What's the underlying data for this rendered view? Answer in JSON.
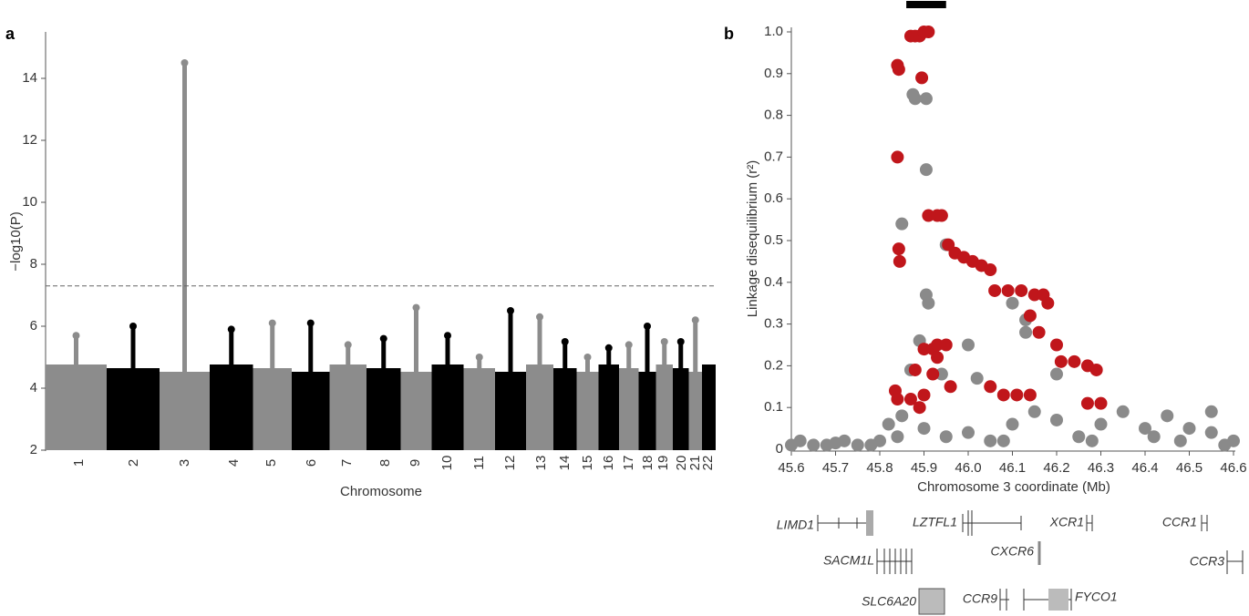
{
  "chart_data": [
    {
      "type": "manhattan",
      "panel": "a",
      "ylabel": "−log10(P)",
      "xlabel": "Chromosome",
      "categories": [
        "1",
        "2",
        "3",
        "4",
        "5",
        "6",
        "7",
        "8",
        "9",
        "10",
        "11",
        "12",
        "13",
        "14",
        "15",
        "16",
        "17",
        "18",
        "19",
        "20",
        "21",
        "22"
      ],
      "values": [
        5.7,
        6.0,
        14.5,
        5.9,
        6.1,
        6.1,
        5.4,
        5.6,
        6.6,
        5.7,
        5.0,
        6.5,
        6.3,
        5.5,
        5.0,
        5.3,
        5.4,
        6.0,
        5.5,
        5.5,
        6.2,
        4.6
      ],
      "colors": [
        "#8c8c8c",
        "#000000"
      ],
      "threshold": 7.3,
      "ylim": [
        2,
        15.5
      ],
      "yticks": [
        2,
        4,
        6,
        8,
        10,
        12,
        14
      ]
    },
    {
      "type": "scatter",
      "panel": "b",
      "xlabel": "Chromosome 3 coordinate (Mb)",
      "ylabel": "Linkage disequilibrium (r²)",
      "highlight": [
        45.86,
        45.95
      ],
      "series": [
        {
          "color": "#8a8a8a",
          "x": [
            45.85,
            45.875,
            45.88,
            45.905,
            45.905,
            45.95,
            45.905,
            45.91,
            45.89,
            45.87,
            45.94,
            46.0,
            46.13,
            46.13,
            46.2,
            46.02,
            46.1,
            45.82,
            45.85,
            45.65,
            45.7,
            45.75,
            45.8,
            45.9,
            46.0,
            46.1,
            46.2,
            46.3,
            46.35,
            46.5,
            46.55,
            46.6,
            45.6,
            46.4,
            46.45,
            45.95,
            46.05,
            46.25,
            46.15,
            46.55,
            45.62,
            45.68,
            45.72,
            45.78,
            45.84,
            46.08,
            46.28,
            46.42,
            46.48,
            46.58
          ],
          "values": [
            0.54,
            0.85,
            0.84,
            0.84,
            0.67,
            0.49,
            0.37,
            0.35,
            0.26,
            0.19,
            0.18,
            0.25,
            0.31,
            0.28,
            0.18,
            0.17,
            0.35,
            0.06,
            0.08,
            0.01,
            0.015,
            0.01,
            0.02,
            0.05,
            0.04,
            0.06,
            0.07,
            0.06,
            0.09,
            0.05,
            0.04,
            0.02,
            0.01,
            0.05,
            0.08,
            0.03,
            0.02,
            0.03,
            0.09,
            0.09,
            0.02,
            0.01,
            0.02,
            0.01,
            0.03,
            0.02,
            0.02,
            0.03,
            0.02,
            0.01
          ]
        },
        {
          "color": "#c0161b",
          "x": [
            45.84,
            45.843,
            45.84,
            45.843,
            45.845,
            45.835,
            45.84,
            45.87,
            45.88,
            45.89,
            45.9,
            45.91,
            45.895,
            45.91,
            45.93,
            45.94,
            45.955,
            45.97,
            45.99,
            46.01,
            46.03,
            46.05,
            46.06,
            46.09,
            46.12,
            46.15,
            46.17,
            46.18,
            46.2,
            46.21,
            46.24,
            46.27,
            46.29,
            46.3,
            46.27,
            45.9,
            45.92,
            45.93,
            45.95,
            45.87,
            45.9,
            45.88,
            45.92,
            45.96,
            46.05,
            46.08,
            46.11,
            46.14,
            46.16,
            46.14,
            45.89,
            45.93
          ],
          "values": [
            0.92,
            0.91,
            0.7,
            0.48,
            0.45,
            0.14,
            0.12,
            0.99,
            0.99,
            0.99,
            1.0,
            1.0,
            0.89,
            0.56,
            0.56,
            0.56,
            0.49,
            0.47,
            0.46,
            0.45,
            0.44,
            0.43,
            0.38,
            0.38,
            0.38,
            0.37,
            0.37,
            0.35,
            0.25,
            0.21,
            0.21,
            0.2,
            0.19,
            0.11,
            0.11,
            0.24,
            0.24,
            0.25,
            0.25,
            0.12,
            0.13,
            0.19,
            0.18,
            0.15,
            0.15,
            0.13,
            0.13,
            0.13,
            0.28,
            0.32,
            0.1,
            0.22
          ]
        }
      ],
      "xlim": [
        45.6,
        46.6
      ],
      "ylim": [
        0,
        1
      ],
      "xticks": [
        45.6,
        45.7,
        45.8,
        45.9,
        {
          "value": 46,
          "label": "46.0"
        },
        46.1,
        46.2,
        46.3,
        46.4,
        46.5,
        46.6
      ],
      "yticks": [
        0,
        0.1,
        0.2,
        0.3,
        0.4,
        0.5,
        0.6,
        0.7,
        0.8,
        0.9,
        {
          "value": 1,
          "label": "1.0"
        }
      ]
    }
  ],
  "genes": [
    "LIMD1",
    "LZTFL1",
    "XCR1",
    "CCR1",
    "SACM1L",
    "CXCR6",
    "CCR3",
    "SLC6A20",
    "CCR9",
    "FYCO1"
  ]
}
